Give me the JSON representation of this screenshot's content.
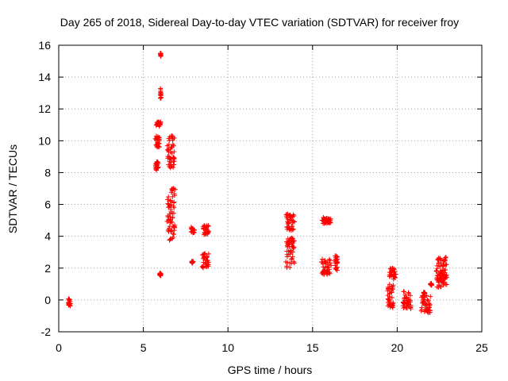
{
  "chart_data": {
    "type": "scatter",
    "title": "Day 265 of 2018, Sidereal Day-to-day VTEC variation (SDTVAR) for receiver froy",
    "xlabel": "GPS time / hours",
    "ylabel": "SDTVAR / TECUs",
    "xlim": [
      0,
      25
    ],
    "ylim": [
      -2,
      16
    ],
    "xticks": [
      0,
      5,
      10,
      15,
      20,
      25
    ],
    "yticks": [
      -2,
      0,
      2,
      4,
      6,
      8,
      10,
      12,
      14,
      16
    ],
    "grid": true,
    "marker": "plus",
    "marker_color": "#ff0000",
    "clusters": [
      {
        "x": [
          0.55,
          0.7
        ],
        "y": [
          -0.4,
          0.1
        ]
      },
      {
        "x": [
          5.7,
          5.9
        ],
        "y": [
          8.1,
          8.7
        ]
      },
      {
        "x": [
          5.7,
          6.0
        ],
        "y": [
          9.6,
          10.3
        ]
      },
      {
        "x": [
          5.75,
          6.05
        ],
        "y": [
          10.9,
          11.2
        ]
      },
      {
        "x": [
          6.0,
          6.05
        ],
        "y": [
          12.6,
          13.3
        ]
      },
      {
        "x": [
          6.0,
          6.05
        ],
        "y": [
          15.3,
          15.5
        ]
      },
      {
        "x": [
          5.95,
          6.05
        ],
        "y": [
          1.5,
          1.7
        ]
      },
      {
        "x": [
          6.4,
          6.9
        ],
        "y": [
          8.3,
          10.4
        ]
      },
      {
        "x": [
          6.4,
          6.9
        ],
        "y": [
          3.7,
          7.1
        ]
      },
      {
        "x": [
          7.8,
          8.05
        ],
        "y": [
          4.2,
          4.6
        ]
      },
      {
        "x": [
          7.85,
          7.95
        ],
        "y": [
          2.3,
          2.45
        ]
      },
      {
        "x": [
          8.5,
          8.9
        ],
        "y": [
          4.1,
          4.7
        ]
      },
      {
        "x": [
          8.45,
          8.9
        ],
        "y": [
          2.0,
          3.0
        ]
      },
      {
        "x": [
          13.4,
          13.95
        ],
        "y": [
          4.3,
          5.4
        ]
      },
      {
        "x": [
          13.4,
          13.95
        ],
        "y": [
          2.0,
          3.9
        ]
      },
      {
        "x": [
          15.55,
          16.1
        ],
        "y": [
          4.8,
          5.2
        ]
      },
      {
        "x": [
          15.5,
          16.1
        ],
        "y": [
          1.6,
          2.6
        ]
      },
      {
        "x": [
          16.3,
          16.5
        ],
        "y": [
          1.8,
          2.8
        ]
      },
      {
        "x": [
          19.4,
          19.8
        ],
        "y": [
          -0.5,
          1.0
        ]
      },
      {
        "x": [
          19.5,
          19.95
        ],
        "y": [
          1.3,
          2.0
        ]
      },
      {
        "x": [
          20.3,
          20.85
        ],
        "y": [
          -0.6,
          0.6
        ]
      },
      {
        "x": [
          21.4,
          22.0
        ],
        "y": [
          -0.8,
          0.3
        ]
      },
      {
        "x": [
          21.95,
          22.05
        ],
        "y": [
          0.9,
          1.05
        ]
      },
      {
        "x": [
          21.55,
          21.65
        ],
        "y": [
          0.4,
          0.5
        ]
      },
      {
        "x": [
          22.3,
          22.95
        ],
        "y": [
          0.8,
          1.6
        ]
      },
      {
        "x": [
          22.3,
          22.95
        ],
        "y": [
          1.3,
          2.7
        ]
      }
    ]
  }
}
